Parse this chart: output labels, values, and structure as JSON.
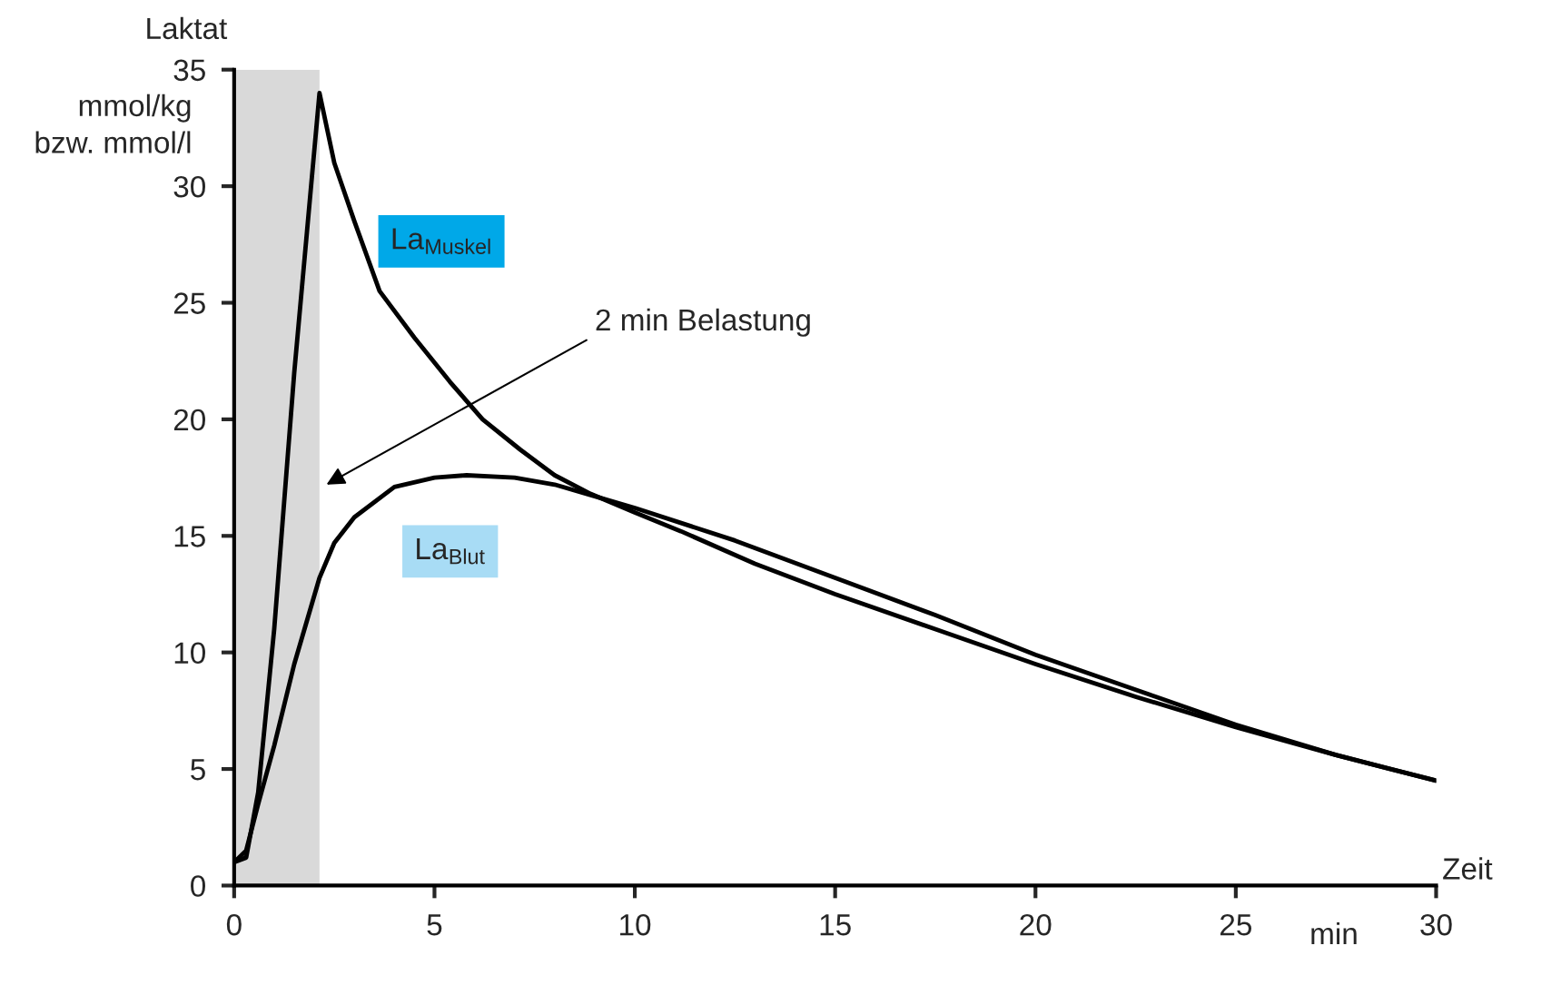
{
  "chart_data": {
    "type": "line",
    "ylabel": "Laktat",
    "xlabel": "Zeit",
    "annotations": [
      "mmol/kg bzw. mmol/l",
      "min",
      "2 min Belastung"
    ],
    "series": [
      {
        "name": "La$_{Muskel}$",
        "color": "#000000",
        "x": [
          0,
          0.3,
          0.6,
          1.0,
          1.5,
          2.13,
          2.5,
          3.0,
          3.63,
          4.5,
          5.39,
          6.2,
          7.14,
          8.0,
          8.9,
          10.0,
          11.15,
          13.0,
          15.0,
          17.5,
          20.0,
          22.5,
          25.0,
          27.5,
          30.0
        ],
        "values": [
          1.0,
          1.2,
          4.0,
          11.0,
          22.0,
          34.0,
          31.0,
          28.5,
          25.5,
          23.5,
          21.6,
          20.0,
          18.7,
          17.6,
          16.8,
          16.0,
          15.2,
          13.8,
          12.5,
          11.0,
          9.5,
          8.1,
          6.8,
          5.6,
          4.5
        ]
      },
      {
        "name": "La$_{Blut}$",
        "color": "#000000",
        "x": [
          0,
          0.3,
          0.6,
          1.0,
          1.5,
          2.13,
          2.5,
          3.0,
          4.0,
          5.0,
          5.8,
          7.0,
          8.0,
          9.0,
          10.0,
          12.5,
          15.0,
          17.5,
          20.0,
          22.5,
          25.0,
          27.5,
          30.0
        ],
        "values": [
          1.0,
          1.5,
          3.5,
          6.0,
          9.5,
          13.2,
          14.7,
          15.8,
          17.1,
          17.5,
          17.6,
          17.5,
          17.2,
          16.7,
          16.2,
          14.8,
          13.2,
          11.6,
          9.9,
          8.4,
          6.9,
          5.6,
          4.5
        ]
      }
    ],
    "bands": [
      {
        "axis": "x",
        "from": 0,
        "to": 2.13,
        "color": "#d9d9d9"
      }
    ],
    "xlim": [
      0,
      30
    ],
    "ylim": [
      0,
      35
    ],
    "xticks": [
      0,
      5,
      10,
      15,
      20,
      25,
      30
    ],
    "yticks": [
      0,
      5,
      10,
      15,
      20,
      25,
      30,
      35
    ],
    "grid": false,
    "legend": false,
    "marker": "none",
    "line_style": "solid"
  }
}
